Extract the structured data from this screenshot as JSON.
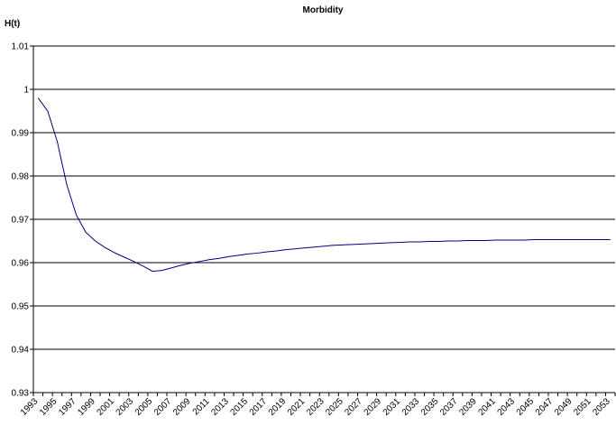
{
  "chart_data": {
    "type": "line",
    "title": "Morbidity",
    "ylabel": "H(t)",
    "xlabel": "",
    "ylim": [
      0.93,
      1.01
    ],
    "yticks": [
      "0.93",
      "0.94",
      "0.95",
      "0.96",
      "0.97",
      "0.98",
      "0.99",
      "1",
      "1.01"
    ],
    "xlim": [
      1993,
      2054
    ],
    "xticks": [
      "1993",
      "1995",
      "1997",
      "1999",
      "2001",
      "2003",
      "2005",
      "2007",
      "2009",
      "2011",
      "2013",
      "2015",
      "2017",
      "2019",
      "2021",
      "2023",
      "2025",
      "2027",
      "2029",
      "2031",
      "2033",
      "2035",
      "2037",
      "2039",
      "2041",
      "2043",
      "2045",
      "2047",
      "2049",
      "2051",
      "2053"
    ],
    "grid": "horizontal",
    "series": [
      {
        "color": "#000080",
        "x": [
          1993.5,
          1994.5,
          1995.5,
          1996.5,
          1997.5,
          1998.5,
          1999.5,
          2000.5,
          2001.5,
          2002.5,
          2003.5,
          2004.5,
          2005.5,
          2006.5,
          2007.5,
          2008.5,
          2009.5,
          2010.5,
          2011.5,
          2012.5,
          2013.5,
          2014.5,
          2015.5,
          2016.5,
          2017.5,
          2018.5,
          2019.5,
          2020.5,
          2021.5,
          2022.5,
          2023.5,
          2024.5,
          2025.5,
          2026.5,
          2027.5,
          2028.5,
          2029.5,
          2030.5,
          2031.5,
          2032.5,
          2033.5,
          2034.5,
          2035.5,
          2036.5,
          2037.5,
          2038.5,
          2039.5,
          2040.5,
          2041.5,
          2042.5,
          2043.5,
          2044.5,
          2045.5,
          2046.5,
          2047.5,
          2048.5,
          2049.5,
          2050.5,
          2051.5,
          2052.5,
          2053.5
        ],
        "values": [
          0.998,
          0.995,
          0.988,
          0.978,
          0.971,
          0.967,
          0.965,
          0.9635,
          0.9623,
          0.9613,
          0.9603,
          0.9592,
          0.958,
          0.9582,
          0.9588,
          0.9594,
          0.9599,
          0.9603,
          0.9607,
          0.961,
          0.9614,
          0.9617,
          0.962,
          0.9622,
          0.9625,
          0.9627,
          0.963,
          0.9632,
          0.9634,
          0.9636,
          0.9638,
          0.964,
          0.9641,
          0.9642,
          0.9643,
          0.9644,
          0.9645,
          0.9646,
          0.9647,
          0.9648,
          0.9648,
          0.9649,
          0.9649,
          0.965,
          0.965,
          0.9651,
          0.9651,
          0.9651,
          0.9652,
          0.9652,
          0.9652,
          0.9652,
          0.9653,
          0.9653,
          0.9653,
          0.9653,
          0.9653,
          0.9653,
          0.9653,
          0.9653,
          0.9653
        ]
      }
    ]
  }
}
